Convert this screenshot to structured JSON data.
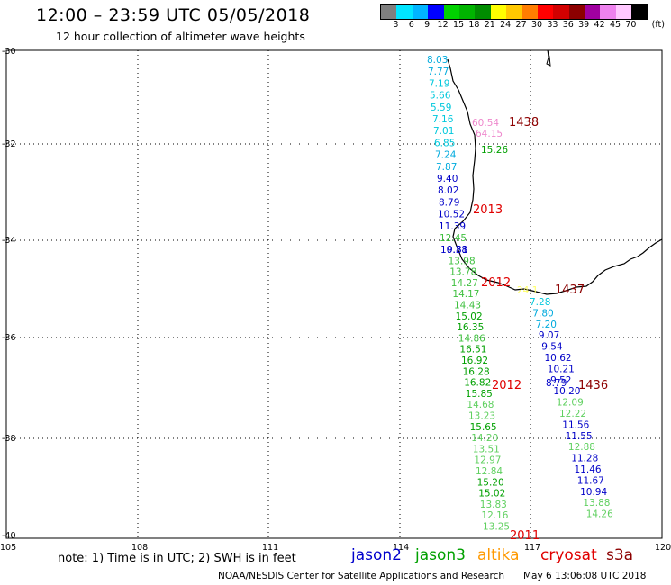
{
  "header": {
    "title": "12:00 – 23:59 UTC 05/05/2018",
    "subtitle": "12 hour collection of altimeter wave heights"
  },
  "legend": {
    "colors": [
      "#7f7f7f",
      "#00e5ff",
      "#00b4ff",
      "#0000ff",
      "#00d200",
      "#00b400",
      "#008c00",
      "#ffff00",
      "#ffc800",
      "#ff7d00",
      "#ff0000",
      "#d20000",
      "#8c0000",
      "#a000a0",
      "#ee82ee",
      "#ffc8ff",
      "#000000"
    ],
    "labels": [
      "3",
      "6",
      "9",
      "12",
      "15",
      "18",
      "21",
      "24",
      "27",
      "30",
      "33",
      "36",
      "39",
      "42",
      "45",
      "70"
    ],
    "unit": "(ft)"
  },
  "axes": {
    "lat_labels": [
      "-30",
      "-32",
      "-34",
      "-36",
      "-38",
      "-40"
    ],
    "lon_labels": [
      "105",
      "108",
      "111",
      "114",
      "117",
      "120"
    ]
  },
  "tracks": [
    {
      "name": "west-coast-track",
      "color_hint": "mixed",
      "values": [
        {
          "t": "8.03",
          "c": "#00aadd"
        },
        {
          "t": "7.77",
          "c": "#00aadd"
        },
        {
          "t": "7.19",
          "c": "#00c8dc"
        },
        {
          "t": "5.66",
          "c": "#00c8dc"
        },
        {
          "t": "5.59",
          "c": "#00c8dc"
        },
        {
          "t": "7.16",
          "c": "#00c8dc"
        },
        {
          "t": "7.01",
          "c": "#00c8dc"
        },
        {
          "t": "6.85",
          "c": "#00c8dc"
        },
        {
          "t": "7.24",
          "c": "#00aadd"
        },
        {
          "t": "7.87",
          "c": "#00aadd"
        },
        {
          "t": "9.40",
          "c": "#0000c8"
        },
        {
          "t": "8.02",
          "c": "#0000c8"
        },
        {
          "t": "8.79",
          "c": "#0000c8"
        },
        {
          "t": "10.52",
          "c": "#0000c8"
        },
        {
          "t": "11.39",
          "c": "#0000c8"
        },
        {
          "t": "12.45",
          "c": "#40c040"
        },
        {
          "t": "10.38",
          "c": "#0000c8"
        }
      ]
    },
    {
      "name": "southwest-track",
      "values": [
        {
          "t": "9.81",
          "c": "#0000c8"
        },
        {
          "t": "13.98",
          "c": "#40c040"
        },
        {
          "t": "13.78",
          "c": "#40c040"
        },
        {
          "t": "14.27",
          "c": "#40c040"
        },
        {
          "t": "14.17",
          "c": "#40c040"
        },
        {
          "t": "14.43",
          "c": "#40c040"
        },
        {
          "t": "15.02",
          "c": "#00a000"
        },
        {
          "t": "16.35",
          "c": "#00a000"
        },
        {
          "t": "14.86",
          "c": "#40c040"
        },
        {
          "t": "16.51",
          "c": "#00a000"
        },
        {
          "t": "16.92",
          "c": "#00a000"
        },
        {
          "t": "16.28",
          "c": "#00a000"
        },
        {
          "t": "16.82",
          "c": "#00a000"
        },
        {
          "t": "15.85",
          "c": "#00a000"
        },
        {
          "t": "14.68",
          "c": "#60d060"
        },
        {
          "t": "13.23",
          "c": "#60d060"
        },
        {
          "t": "15.65",
          "c": "#00a000"
        },
        {
          "t": "14.20",
          "c": "#60d060"
        },
        {
          "t": "13.51",
          "c": "#60d060"
        },
        {
          "t": "12.97",
          "c": "#60d060"
        },
        {
          "t": "12.84",
          "c": "#60d060"
        },
        {
          "t": "15.20",
          "c": "#00a000"
        },
        {
          "t": "15.02",
          "c": "#00a000"
        },
        {
          "t": "13.83",
          "c": "#60d060"
        },
        {
          "t": "12.16",
          "c": "#60d060"
        },
        {
          "t": "13.25",
          "c": "#60d060"
        }
      ]
    },
    {
      "name": "southeast-track",
      "values": [
        {
          "t": "7.28",
          "c": "#00c8dc"
        },
        {
          "t": "7.80",
          "c": "#00aadd"
        },
        {
          "t": "7.20",
          "c": "#00aadd"
        },
        {
          "t": "9.07",
          "c": "#0000c8"
        },
        {
          "t": "9.54",
          "c": "#0000c8"
        },
        {
          "t": "10.62",
          "c": "#0000c8"
        },
        {
          "t": "10.21",
          "c": "#0000c8"
        },
        {
          "t": "9.52",
          "c": "#0000c8"
        },
        {
          "t": "10.20",
          "c": "#0000c8"
        },
        {
          "t": "12.09",
          "c": "#60d060"
        },
        {
          "t": "12.22",
          "c": "#60d060"
        },
        {
          "t": "11.56",
          "c": "#0000c8"
        },
        {
          "t": "11.55",
          "c": "#0000c8"
        },
        {
          "t": "12.88",
          "c": "#60d060"
        },
        {
          "t": "11.28",
          "c": "#0000c8"
        },
        {
          "t": "11.46",
          "c": "#0000c8"
        },
        {
          "t": "11.67",
          "c": "#0000c8"
        },
        {
          "t": "10.94",
          "c": "#0000c8"
        },
        {
          "t": "13.88",
          "c": "#60d060"
        },
        {
          "t": "14.26",
          "c": "#60d060"
        }
      ]
    }
  ],
  "extra_values": [
    {
      "t": "60.54",
      "c": "#ee88cc"
    },
    {
      "t": "64.15",
      "c": "#ee88cc"
    },
    {
      "t": "15.26",
      "c": "#00a000"
    },
    {
      "t": "8.79",
      "c": "#0000c8"
    },
    {
      "t": "24.1",
      "c": "#ffff66"
    }
  ],
  "times": [
    {
      "t": "1438",
      "c": "#8c0000"
    },
    {
      "t": "2013",
      "c": "#e00000"
    },
    {
      "t": "2012",
      "c": "#e00000"
    },
    {
      "t": "1437",
      "c": "#8c0000"
    },
    {
      "t": "2012",
      "c": "#e00000"
    },
    {
      "t": "1436",
      "c": "#8c0000"
    },
    {
      "t": "2011",
      "c": "#e00000"
    }
  ],
  "note": "note: 1) Time is in UTC; 2) SWH is in feet",
  "satellites": [
    {
      "name": "jason2",
      "color": "#0000cc"
    },
    {
      "name": "jason3",
      "color": "#00a000"
    },
    {
      "name": "altika",
      "color": "#ff9900"
    },
    {
      "name": "cryosat",
      "color": "#e00000"
    },
    {
      "name": "s3a",
      "color": "#8c0000"
    }
  ],
  "footer": {
    "credit": "NOAA/NESDIS Center for Satellite Applications and Research",
    "timestamp": "May  6 13:06:08 UTC 2018"
  }
}
